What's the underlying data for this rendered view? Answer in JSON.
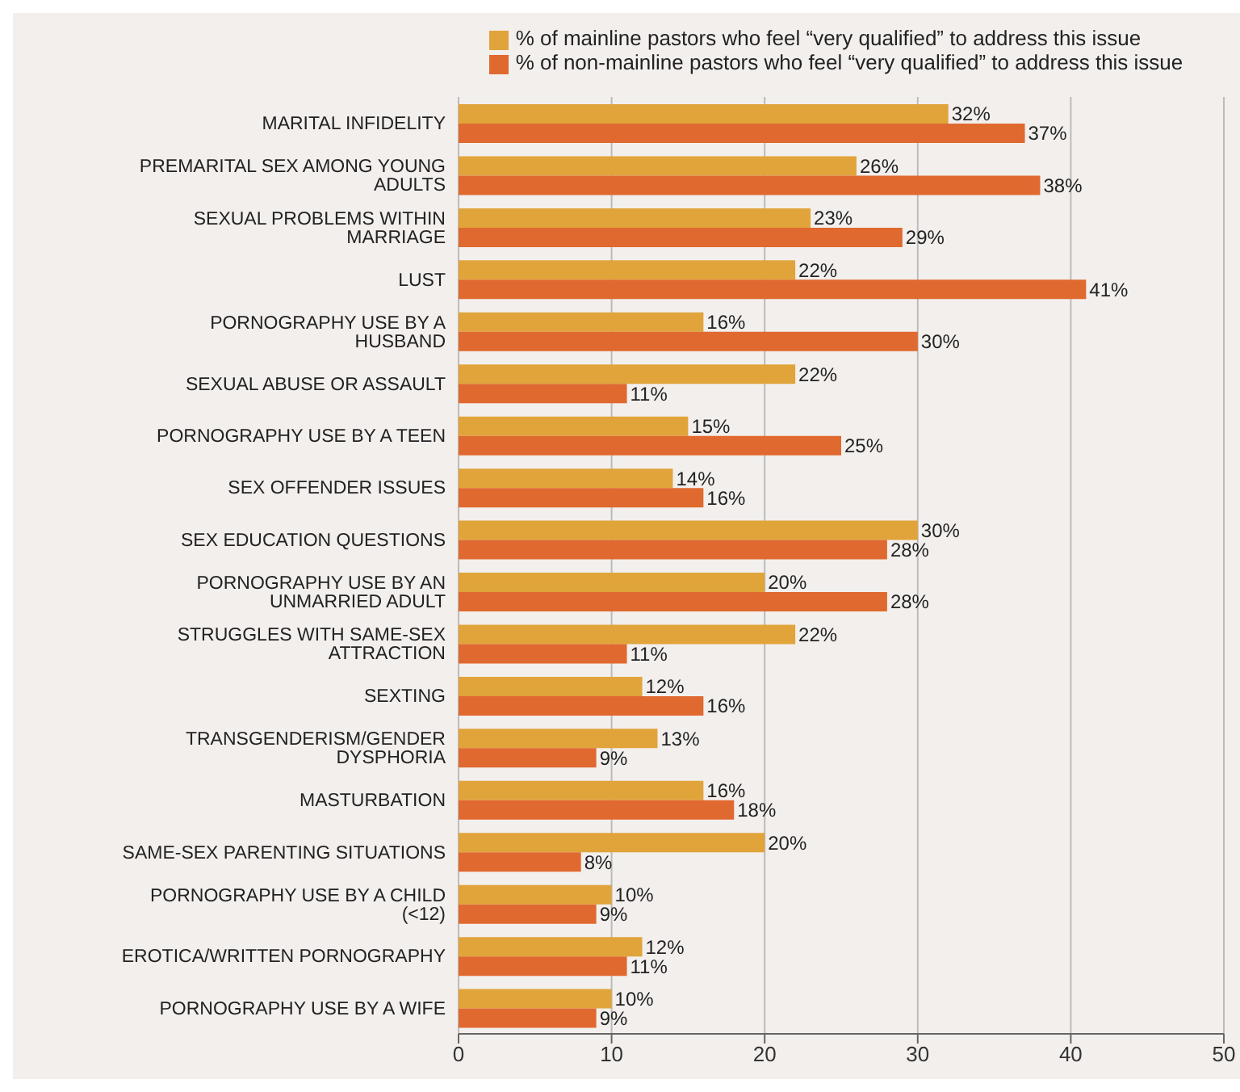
{
  "chart_data": {
    "type": "bar",
    "orientation": "horizontal",
    "categories": [
      "MARITAL INFIDELITY",
      "PREMARITAL SEX AMONG YOUNG ADULTS",
      "SEXUAL PROBLEMS WITHIN MARRIAGE",
      "LUST",
      "PORNOGRAPHY USE BY A HUSBAND",
      "SEXUAL ABUSE OR ASSAULT",
      "PORNOGRAPHY USE BY A TEEN",
      "SEX OFFENDER ISSUES",
      "SEX EDUCATION QUESTIONS",
      "PORNOGRAPHY USE BY AN UNMARRIED ADULT",
      "STRUGGLES WITH SAME-SEX ATTRACTION",
      "SEXTING",
      "TRANSGENDERISM/GENDER DYSPHORIA",
      "MASTURBATION",
      "SAME-SEX PARENTING SITUATIONS",
      "PORNOGRAPHY USE BY A CHILD (<12)",
      "EROTICA/WRITTEN PORNOGRAPHY",
      "PORNOGRAPHY USE BY A WIFE"
    ],
    "series": [
      {
        "name": "% of mainline pastors who feel “very qualified” to address this issue",
        "color": "#e0a43a",
        "values": [
          32,
          26,
          23,
          22,
          16,
          22,
          15,
          14,
          30,
          20,
          22,
          12,
          13,
          16,
          20,
          10,
          12,
          10
        ],
        "value_labels": [
          "32%",
          "26%",
          "23%",
          "22%",
          "16%",
          "22%",
          "15%",
          "14%",
          "30%",
          "20%",
          "22%",
          "12%",
          "13%",
          "16%",
          "20%",
          "10%",
          "12%",
          "10%"
        ]
      },
      {
        "name": "% of non-mainline pastors who feel “very qualified” to address this issue",
        "color": "#e0692f",
        "values": [
          37,
          38,
          29,
          41,
          30,
          11,
          25,
          16,
          28,
          28,
          11,
          16,
          9,
          18,
          8,
          9,
          11,
          9
        ],
        "value_labels": [
          "37%",
          "38%",
          "29%",
          "41%",
          "30%",
          "11%",
          "25%",
          "16%",
          "28%",
          "28%",
          "11%",
          "16%",
          "9%",
          "18%",
          "8%",
          "9%",
          "11%",
          "9%"
        ]
      }
    ],
    "xlim": [
      0,
      50
    ],
    "xticks": [
      0,
      10,
      20,
      30,
      40,
      50
    ],
    "grid": "x",
    "legend": "top"
  }
}
